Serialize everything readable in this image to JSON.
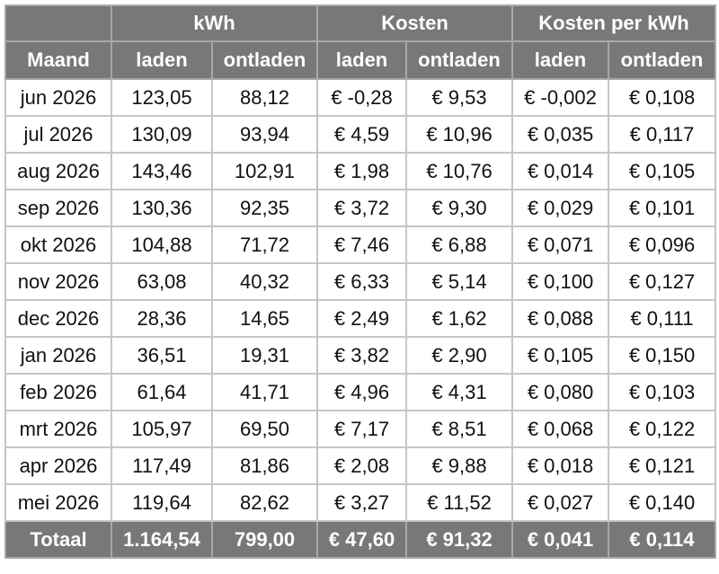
{
  "table": {
    "group_headers": [
      "kWh",
      "Kosten",
      "Kosten per kWh"
    ],
    "headers": [
      "Maand",
      "laden",
      "ontladen",
      "laden",
      "ontladen",
      "laden",
      "ontladen"
    ],
    "rows": [
      [
        "jun 2026",
        "123,05",
        "88,12",
        "€ -0,28",
        "€ 9,53",
        "€ -0,002",
        "€ 0,108"
      ],
      [
        "jul 2026",
        "130,09",
        "93,94",
        "€ 4,59",
        "€ 10,96",
        "€ 0,035",
        "€ 0,117"
      ],
      [
        "aug 2026",
        "143,46",
        "102,91",
        "€ 1,98",
        "€ 10,76",
        "€ 0,014",
        "€ 0,105"
      ],
      [
        "sep 2026",
        "130,36",
        "92,35",
        "€ 3,72",
        "€ 9,30",
        "€ 0,029",
        "€ 0,101"
      ],
      [
        "okt 2026",
        "104,88",
        "71,72",
        "€ 7,46",
        "€ 6,88",
        "€ 0,071",
        "€ 0,096"
      ],
      [
        "nov 2026",
        "63,08",
        "40,32",
        "€ 6,33",
        "€ 5,14",
        "€ 0,100",
        "€ 0,127"
      ],
      [
        "dec 2026",
        "28,36",
        "14,65",
        "€ 2,49",
        "€ 1,62",
        "€ 0,088",
        "€ 0,111"
      ],
      [
        "jan 2026",
        "36,51",
        "19,31",
        "€ 3,82",
        "€ 2,90",
        "€ 0,105",
        "€ 0,150"
      ],
      [
        "feb 2026",
        "61,64",
        "41,71",
        "€ 4,96",
        "€ 4,31",
        "€ 0,080",
        "€ 0,103"
      ],
      [
        "mrt 2026",
        "105,97",
        "69,50",
        "€ 7,17",
        "€ 8,51",
        "€ 0,068",
        "€ 0,122"
      ],
      [
        "apr 2026",
        "117,49",
        "81,86",
        "€ 2,08",
        "€ 9,88",
        "€ 0,018",
        "€ 0,121"
      ],
      [
        "mei 2026",
        "119,64",
        "82,62",
        "€ 3,27",
        "€ 11,52",
        "€ 0,027",
        "€ 0,140"
      ]
    ],
    "total": [
      "Totaal",
      "1.164,54",
      "799,00",
      "€ 47,60",
      "€ 91,32",
      "€ 0,041",
      "€ 0,114"
    ]
  }
}
